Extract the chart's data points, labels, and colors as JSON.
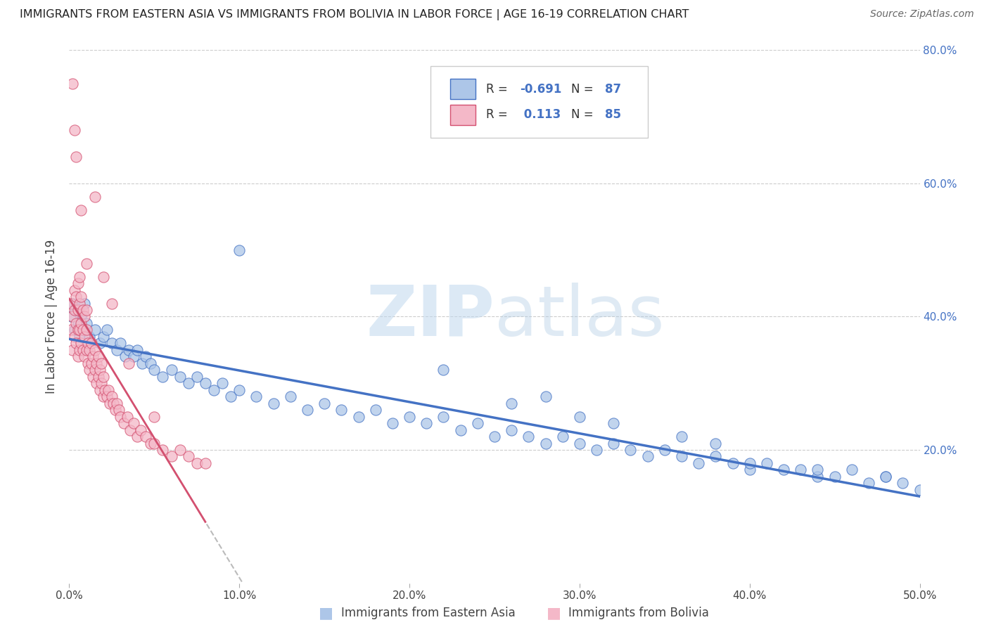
{
  "title": "IMMIGRANTS FROM EASTERN ASIA VS IMMIGRANTS FROM BOLIVIA IN LABOR FORCE | AGE 16-19 CORRELATION CHART",
  "source": "Source: ZipAtlas.com",
  "xlabel_blue": "Immigrants from Eastern Asia",
  "xlabel_pink": "Immigrants from Bolivia",
  "ylabel": "In Labor Force | Age 16-19",
  "xlim": [
    0.0,
    0.5
  ],
  "ylim": [
    0.0,
    0.8
  ],
  "xticks": [
    0.0,
    0.1,
    0.2,
    0.3,
    0.4,
    0.5
  ],
  "xtick_labels": [
    "0.0%",
    "10.0%",
    "20.0%",
    "30.0%",
    "40.0%",
    "50.0%"
  ],
  "yticks_right": [
    0.2,
    0.4,
    0.6,
    0.8
  ],
  "ytick_labels_right": [
    "20.0%",
    "40.0%",
    "60.0%",
    "80.0%"
  ],
  "blue_color": "#adc6e8",
  "blue_line_color": "#4472c4",
  "pink_color": "#f4b8c8",
  "pink_line_color": "#d45070",
  "trend_gray_color": "#bbbbbb",
  "watermark_color": "#c8dff0",
  "background_color": "#ffffff",
  "grid_color": "#cccccc",
  "blue_r": "-0.691",
  "blue_n": "87",
  "pink_r": "0.113",
  "pink_n": "85",
  "blue_scatter_x": [
    0.001,
    0.002,
    0.003,
    0.004,
    0.005,
    0.006,
    0.007,
    0.008,
    0.009,
    0.01,
    0.012,
    0.015,
    0.018,
    0.02,
    0.022,
    0.025,
    0.028,
    0.03,
    0.033,
    0.035,
    0.038,
    0.04,
    0.043,
    0.045,
    0.048,
    0.05,
    0.055,
    0.06,
    0.065,
    0.07,
    0.075,
    0.08,
    0.085,
    0.09,
    0.095,
    0.1,
    0.11,
    0.12,
    0.13,
    0.14,
    0.15,
    0.16,
    0.17,
    0.18,
    0.19,
    0.2,
    0.21,
    0.22,
    0.23,
    0.24,
    0.25,
    0.26,
    0.27,
    0.28,
    0.29,
    0.3,
    0.31,
    0.32,
    0.33,
    0.34,
    0.35,
    0.36,
    0.37,
    0.38,
    0.39,
    0.4,
    0.41,
    0.42,
    0.43,
    0.44,
    0.45,
    0.46,
    0.47,
    0.48,
    0.49,
    0.5,
    0.28,
    0.32,
    0.36,
    0.4,
    0.22,
    0.26,
    0.3,
    0.38,
    0.44,
    0.48,
    0.1
  ],
  "blue_scatter_y": [
    0.4,
    0.42,
    0.38,
    0.41,
    0.39,
    0.37,
    0.4,
    0.38,
    0.42,
    0.39,
    0.37,
    0.38,
    0.36,
    0.37,
    0.38,
    0.36,
    0.35,
    0.36,
    0.34,
    0.35,
    0.34,
    0.35,
    0.33,
    0.34,
    0.33,
    0.32,
    0.31,
    0.32,
    0.31,
    0.3,
    0.31,
    0.3,
    0.29,
    0.3,
    0.28,
    0.29,
    0.28,
    0.27,
    0.28,
    0.26,
    0.27,
    0.26,
    0.25,
    0.26,
    0.24,
    0.25,
    0.24,
    0.25,
    0.23,
    0.24,
    0.22,
    0.23,
    0.22,
    0.21,
    0.22,
    0.21,
    0.2,
    0.21,
    0.2,
    0.19,
    0.2,
    0.19,
    0.18,
    0.19,
    0.18,
    0.17,
    0.18,
    0.17,
    0.17,
    0.16,
    0.16,
    0.17,
    0.15,
    0.16,
    0.15,
    0.14,
    0.28,
    0.24,
    0.22,
    0.18,
    0.32,
    0.27,
    0.25,
    0.21,
    0.17,
    0.16,
    0.5
  ],
  "pink_scatter_x": [
    0.001,
    0.001,
    0.002,
    0.002,
    0.003,
    0.003,
    0.003,
    0.004,
    0.004,
    0.004,
    0.005,
    0.005,
    0.005,
    0.005,
    0.006,
    0.006,
    0.006,
    0.006,
    0.007,
    0.007,
    0.007,
    0.008,
    0.008,
    0.008,
    0.009,
    0.009,
    0.009,
    0.01,
    0.01,
    0.01,
    0.011,
    0.011,
    0.012,
    0.012,
    0.013,
    0.013,
    0.014,
    0.014,
    0.015,
    0.015,
    0.016,
    0.016,
    0.017,
    0.017,
    0.018,
    0.018,
    0.019,
    0.019,
    0.02,
    0.02,
    0.021,
    0.022,
    0.023,
    0.024,
    0.025,
    0.026,
    0.027,
    0.028,
    0.029,
    0.03,
    0.032,
    0.034,
    0.036,
    0.038,
    0.04,
    0.042,
    0.045,
    0.048,
    0.05,
    0.055,
    0.06,
    0.065,
    0.07,
    0.075,
    0.08,
    0.002,
    0.003,
    0.004,
    0.007,
    0.01,
    0.015,
    0.02,
    0.025,
    0.035,
    0.05
  ],
  "pink_scatter_y": [
    0.38,
    0.42,
    0.35,
    0.4,
    0.37,
    0.41,
    0.44,
    0.36,
    0.39,
    0.43,
    0.34,
    0.38,
    0.41,
    0.45,
    0.35,
    0.38,
    0.42,
    0.46,
    0.36,
    0.39,
    0.43,
    0.35,
    0.38,
    0.41,
    0.34,
    0.37,
    0.4,
    0.35,
    0.38,
    0.41,
    0.33,
    0.36,
    0.32,
    0.35,
    0.33,
    0.36,
    0.31,
    0.34,
    0.32,
    0.35,
    0.3,
    0.33,
    0.31,
    0.34,
    0.29,
    0.32,
    0.3,
    0.33,
    0.28,
    0.31,
    0.29,
    0.28,
    0.29,
    0.27,
    0.28,
    0.27,
    0.26,
    0.27,
    0.26,
    0.25,
    0.24,
    0.25,
    0.23,
    0.24,
    0.22,
    0.23,
    0.22,
    0.21,
    0.21,
    0.2,
    0.19,
    0.2,
    0.19,
    0.18,
    0.18,
    0.75,
    0.68,
    0.64,
    0.56,
    0.48,
    0.58,
    0.46,
    0.42,
    0.33,
    0.25
  ]
}
